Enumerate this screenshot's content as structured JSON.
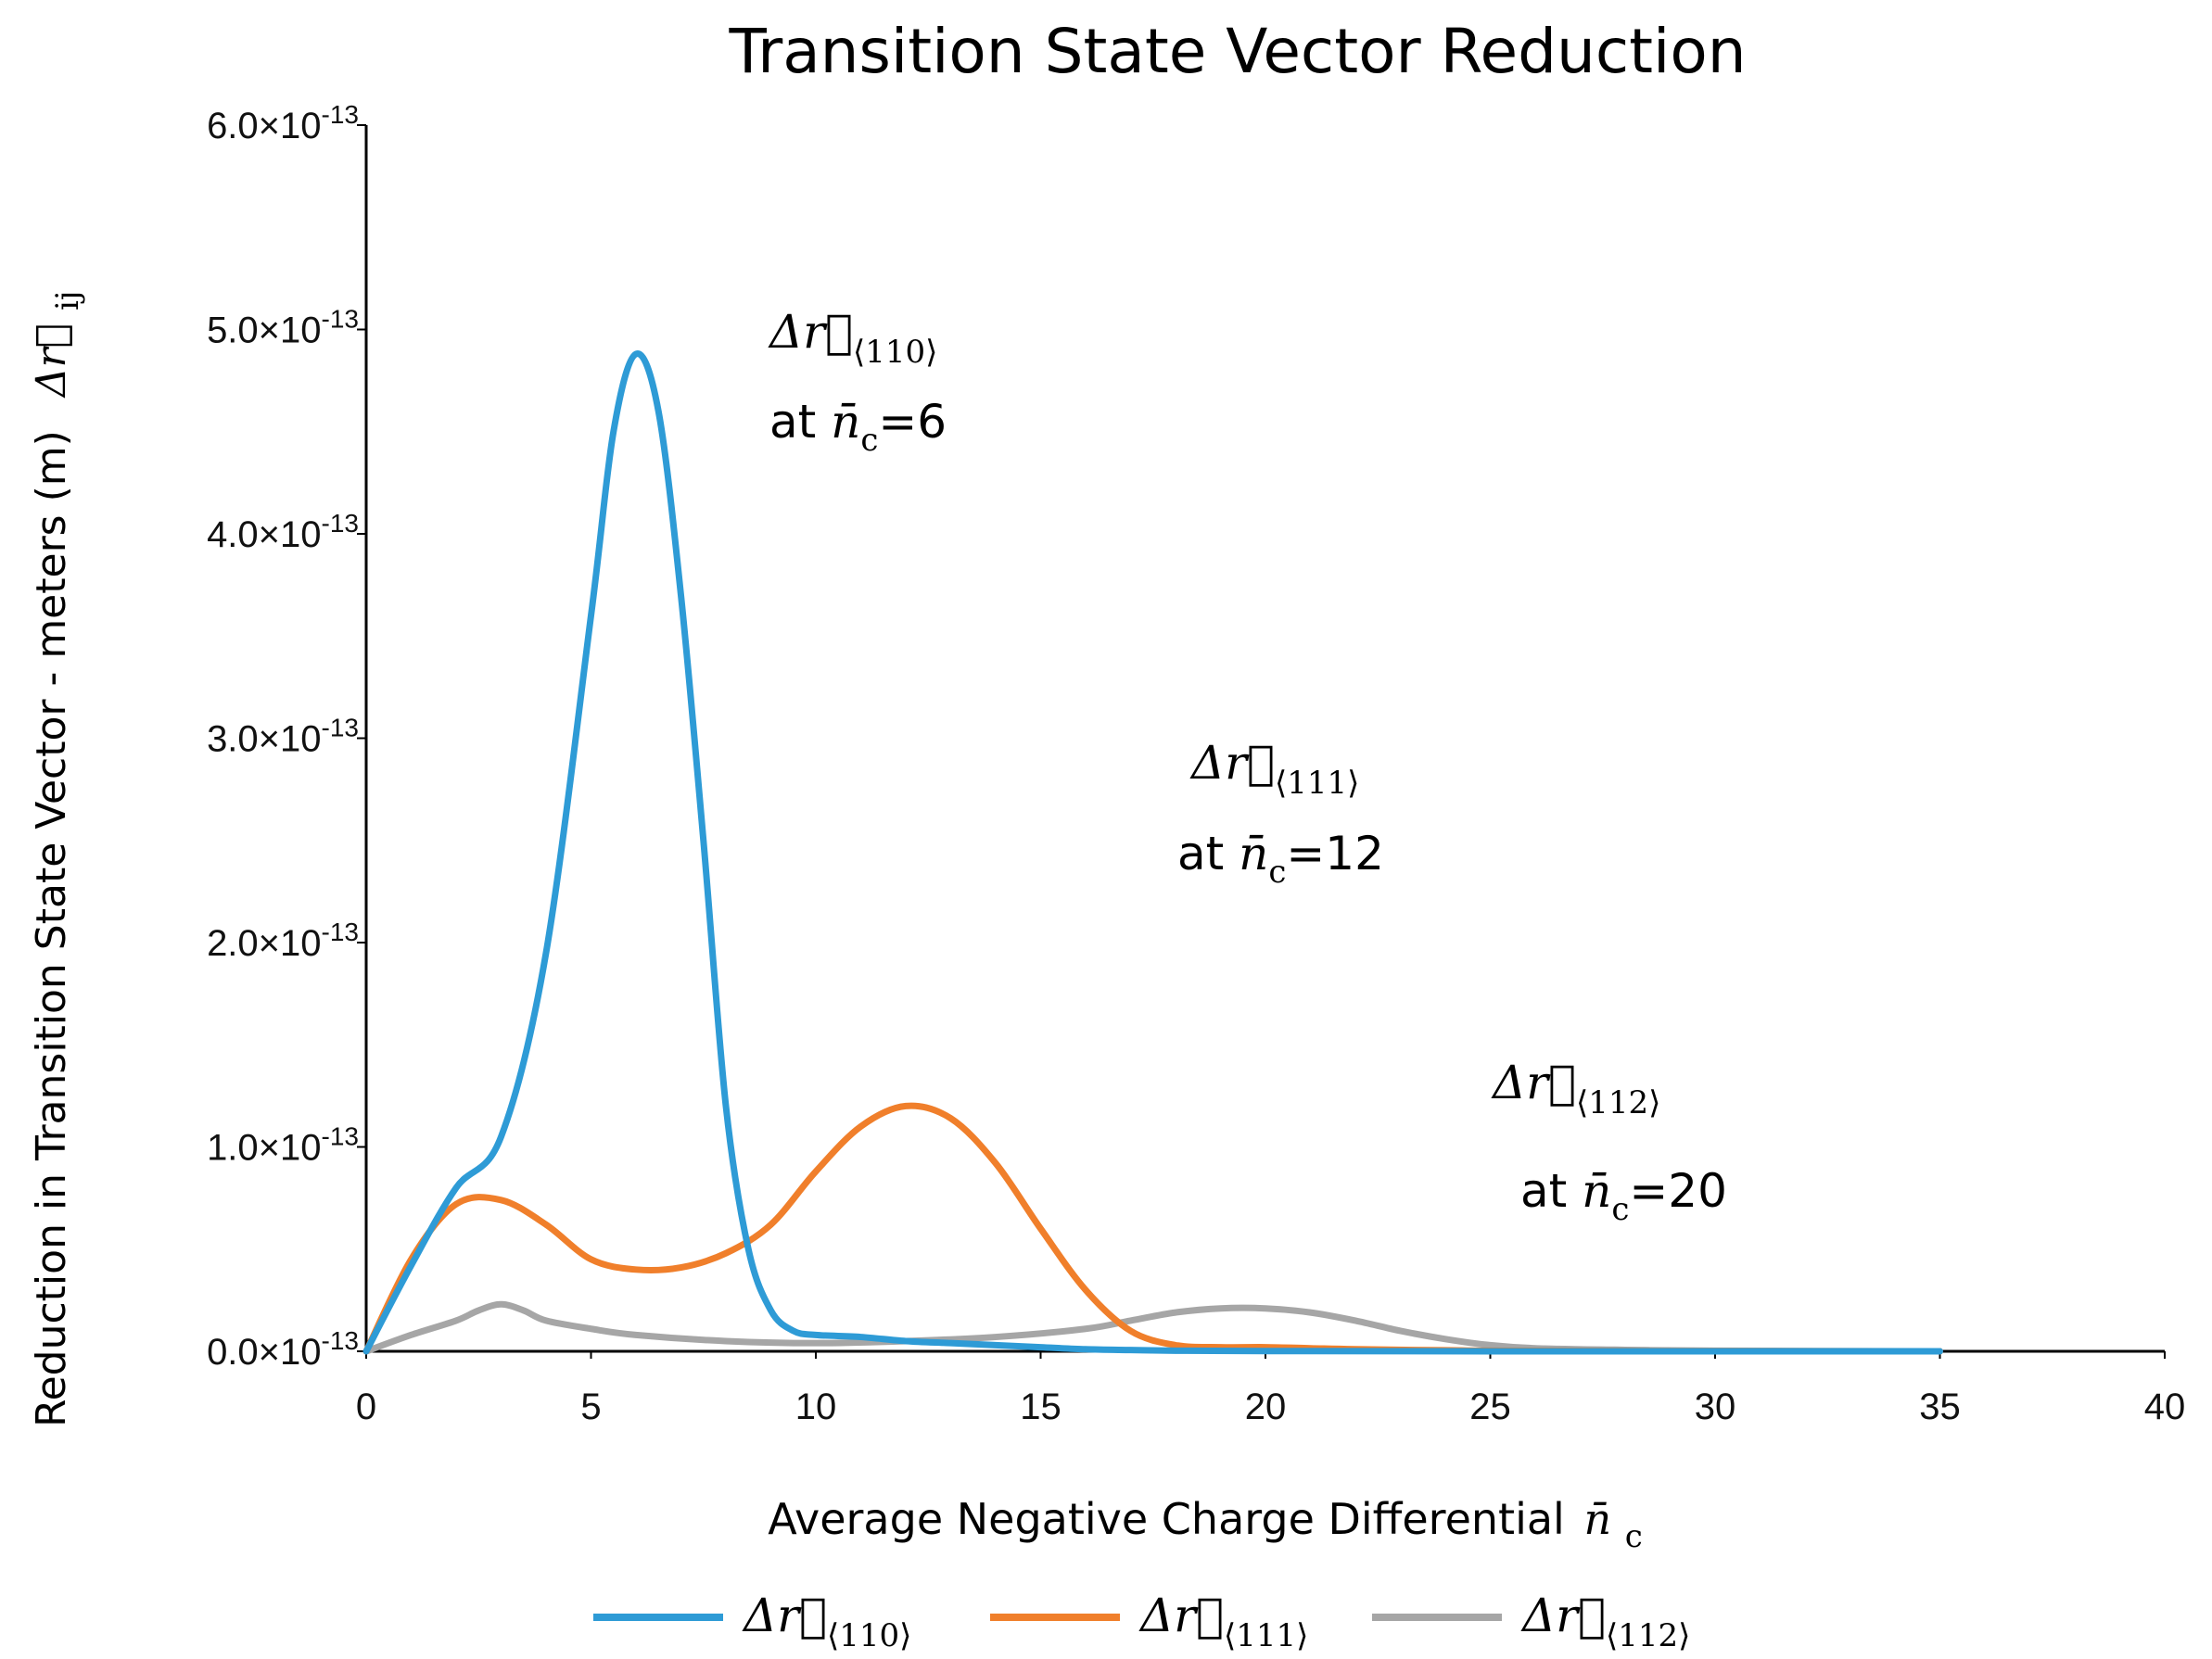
{
  "chart_data": {
    "type": "line",
    "title": "Transition State Vector Reduction",
    "xlabel": "Average Negative Charge Differential",
    "xlabel_symbol": "n̄",
    "xlabel_symbol_sub": "c",
    "ylabel": "Reduction in Transition State Vector - meters (m)",
    "ylabel_symbol": "Δr⃗",
    "ylabel_symbol_sub": "ij",
    "xlim": [
      0,
      40
    ],
    "ylim": [
      0,
      6.0
    ],
    "x_ticks": [
      0,
      5,
      10,
      15,
      20,
      25,
      30,
      35,
      40
    ],
    "y_ticks": [
      {
        "value": 0,
        "label": "0.0×10",
        "exp": "-13"
      },
      {
        "value": 1,
        "label": "1.0×10",
        "exp": "-13"
      },
      {
        "value": 2,
        "label": "2.0×10",
        "exp": "-13"
      },
      {
        "value": 3,
        "label": "3.0×10",
        "exp": "-13"
      },
      {
        "value": 4,
        "label": "4.0×10",
        "exp": "-13"
      },
      {
        "value": 5,
        "label": "5.0×10",
        "exp": "-13"
      },
      {
        "value": 6,
        "label": "6.0×10",
        "exp": "-13"
      }
    ],
    "y_unit": "×10^-13 m",
    "series": [
      {
        "name": "Δr⃗⟨110⟩",
        "symbol": "Δr⃗",
        "sub": "⟨110⟩",
        "color": "#2e9bd6",
        "x": [
          0,
          1,
          2,
          3,
          4,
          5,
          5.5,
          6,
          6.5,
          7,
          7.5,
          8,
          8.5,
          9,
          9.5,
          10,
          11,
          12,
          13,
          14,
          15,
          16,
          17,
          18,
          20,
          25,
          35
        ],
        "y": [
          0,
          0.42,
          0.8,
          1.05,
          1.95,
          3.6,
          4.5,
          4.88,
          4.6,
          3.7,
          2.5,
          1.2,
          0.5,
          0.2,
          0.1,
          0.08,
          0.07,
          0.05,
          0.04,
          0.03,
          0.02,
          0.01,
          0.006,
          0.003,
          0.001,
          0,
          0
        ]
      },
      {
        "name": "Δr⃗⟨111⟩",
        "symbol": "Δr⃗",
        "sub": "⟨111⟩",
        "color": "#f07f2b",
        "x": [
          0,
          1,
          2,
          3,
          4,
          5,
          6,
          7,
          8,
          9,
          10,
          11,
          12,
          13,
          14,
          15,
          16,
          17,
          18,
          19,
          20,
          21,
          22,
          24,
          26,
          35
        ],
        "y": [
          0,
          0.45,
          0.72,
          0.74,
          0.62,
          0.45,
          0.4,
          0.41,
          0.48,
          0.62,
          0.88,
          1.1,
          1.2,
          1.14,
          0.92,
          0.6,
          0.3,
          0.1,
          0.03,
          0.02,
          0.02,
          0.015,
          0.01,
          0.005,
          0.002,
          0
        ]
      },
      {
        "name": "Δr⃗⟨112⟩",
        "symbol": "Δr⃗",
        "sub": "⟨112⟩",
        "color": "#a6a6a6",
        "x": [
          0,
          1,
          2,
          2.5,
          3,
          3.5,
          4,
          5,
          6,
          8,
          10,
          12,
          14,
          16,
          17,
          18,
          19,
          20,
          21,
          22,
          23,
          24,
          25,
          26,
          28,
          30,
          35
        ],
        "y": [
          0,
          0.08,
          0.15,
          0.2,
          0.23,
          0.2,
          0.15,
          0.11,
          0.08,
          0.05,
          0.04,
          0.05,
          0.07,
          0.11,
          0.15,
          0.19,
          0.21,
          0.21,
          0.19,
          0.15,
          0.1,
          0.06,
          0.03,
          0.015,
          0.007,
          0.003,
          0
        ]
      }
    ],
    "annotations": [
      {
        "series": 0,
        "symbol": "Δr⃗",
        "sub": "⟨110⟩",
        "prefix": "at ",
        "nsym": "n̄",
        "nsub": "c",
        "eq": "=6",
        "x": 6
      },
      {
        "series": 1,
        "symbol": "Δr⃗",
        "sub": "⟨111⟩",
        "prefix": "at ",
        "nsym": "n̄",
        "nsub": "c",
        "eq": "=12",
        "x": 12
      },
      {
        "series": 2,
        "symbol": "Δr⃗",
        "sub": "⟨112⟩",
        "prefix": "at ",
        "nsym": "n̄",
        "nsub": "c",
        "eq": "=20",
        "x": 20
      }
    ],
    "legend_position": "bottom",
    "grid": false
  }
}
